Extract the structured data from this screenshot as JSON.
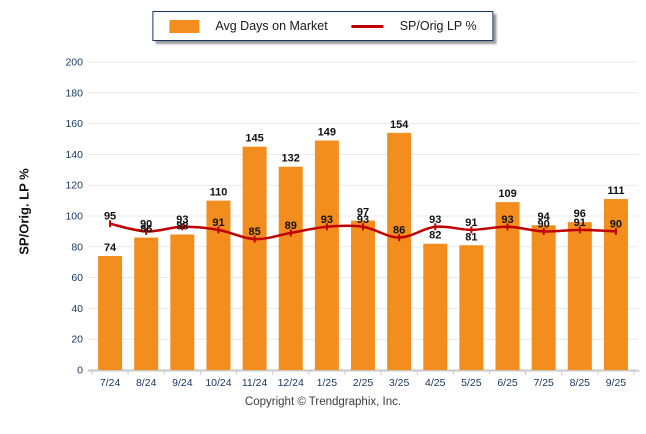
{
  "legend": {
    "items": [
      {
        "label": "Avg Days on Market",
        "type": "bar-swatch",
        "color": "#F28D1E"
      },
      {
        "label": "SP/Orig LP %",
        "type": "line-swatch",
        "color": "#C00000"
      }
    ]
  },
  "footer": {
    "text": "Copyright © Trendgraphix, Inc."
  },
  "chart_data": {
    "type": "bar+line",
    "title": "",
    "ylabel": "SP/Orig. LP %",
    "xlabel": "",
    "ylim": [
      0,
      200
    ],
    "yticks": [
      0,
      20,
      40,
      60,
      80,
      100,
      120,
      140,
      160,
      180,
      200
    ],
    "grid": true,
    "legend_position": "top-center",
    "categories": [
      "7/24",
      "8/24",
      "9/24",
      "10/24",
      "11/24",
      "12/24",
      "1/25",
      "2/25",
      "3/25",
      "4/25",
      "5/25",
      "6/25",
      "7/25",
      "8/25",
      "9/25"
    ],
    "series": [
      {
        "name": "Avg Days on Market",
        "type": "bar",
        "color": "#F28D1E",
        "values": [
          74,
          86,
          88,
          110,
          145,
          132,
          149,
          97,
          154,
          82,
          81,
          109,
          94,
          96,
          111
        ]
      },
      {
        "name": "SP/Orig LP %",
        "type": "line",
        "color": "#C00000",
        "values": [
          95,
          90,
          93,
          91,
          85,
          89,
          93,
          93,
          86,
          93,
          91,
          93,
          90,
          91,
          90
        ]
      }
    ],
    "colors": {
      "grid": "#e8e8e8",
      "axis": "#c9c9c9",
      "tick_text": "#17365d",
      "value_text": "#111111"
    }
  }
}
